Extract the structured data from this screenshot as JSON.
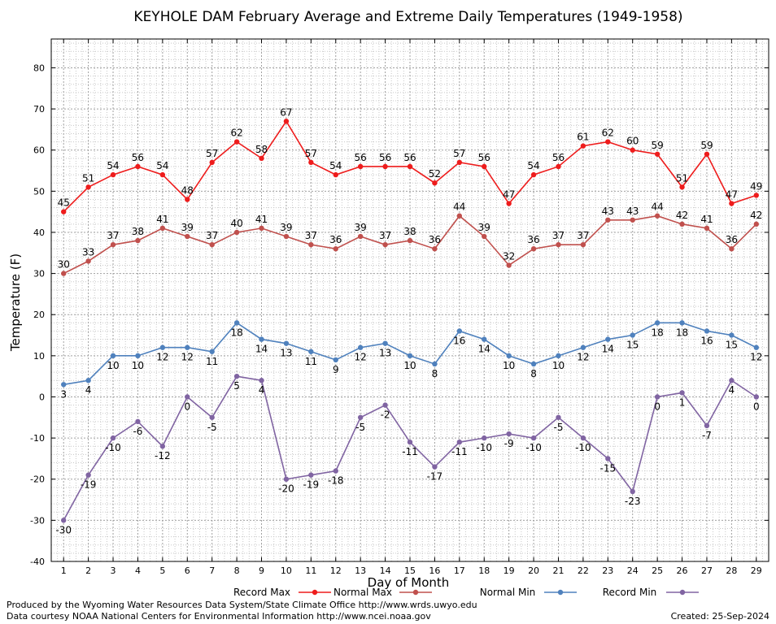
{
  "chart_data": {
    "type": "line",
    "title": "KEYHOLE DAM February Average and Extreme Daily Temperatures (1949-1958)",
    "xlabel": "Day of Month",
    "ylabel": "Temperature (F)",
    "x": [
      1,
      2,
      3,
      4,
      5,
      6,
      7,
      8,
      9,
      10,
      11,
      12,
      13,
      14,
      15,
      16,
      17,
      18,
      19,
      20,
      21,
      22,
      23,
      24,
      25,
      26,
      27,
      28,
      29
    ],
    "xlim": [
      0.5,
      29.5
    ],
    "ylim": [
      -40,
      87
    ],
    "yticks": [
      -40,
      -30,
      -20,
      -10,
      0,
      10,
      20,
      30,
      40,
      50,
      60,
      70,
      80
    ],
    "grid": true,
    "legend_position": "bottom",
    "series": [
      {
        "name": "Record Max",
        "color": "#ee1c1c",
        "label_pos": "above",
        "values": [
          45,
          51,
          54,
          56,
          54,
          48,
          57,
          62,
          58,
          67,
          57,
          54,
          56,
          56,
          56,
          52,
          57,
          56,
          47,
          54,
          56,
          61,
          62,
          60,
          59,
          51,
          59,
          47,
          49
        ]
      },
      {
        "name": "Normal Max",
        "color": "#c0504d",
        "label_pos": "above",
        "values": [
          30,
          33,
          37,
          38,
          41,
          39,
          37,
          40,
          41,
          39,
          37,
          36,
          39,
          37,
          38,
          36,
          44,
          39,
          32,
          36,
          37,
          37,
          43,
          43,
          44,
          42,
          41,
          36,
          42
        ]
      },
      {
        "name": "Normal Min",
        "color": "#4f81bd",
        "label_pos": "below",
        "values": [
          3,
          4,
          10,
          10,
          12,
          12,
          11,
          18,
          14,
          13,
          11,
          9,
          12,
          13,
          10,
          8,
          16,
          14,
          10,
          8,
          10,
          12,
          14,
          15,
          18,
          18,
          16,
          15,
          12
        ]
      },
      {
        "name": "Record Min",
        "color": "#8064a2",
        "label_pos": "below",
        "values": [
          -30,
          -19,
          -10,
          -6,
          -12,
          0,
          -5,
          5,
          4,
          -20,
          -19,
          -18,
          -5,
          -2,
          -11,
          -17,
          -11,
          -10,
          -9,
          -10,
          -5,
          -10,
          -15,
          -23,
          0,
          1,
          -7,
          4,
          0
        ]
      }
    ]
  },
  "footer": {
    "line1": "Produced by the Wyoming Water Resources Data System/State Climate Office http://www.wrds.uwyo.edu",
    "line2": "Data courtesy NOAA National Centers for Environmental Information http://www.ncei.noaa.gov",
    "created": "Created:  25-Sep-2024"
  }
}
